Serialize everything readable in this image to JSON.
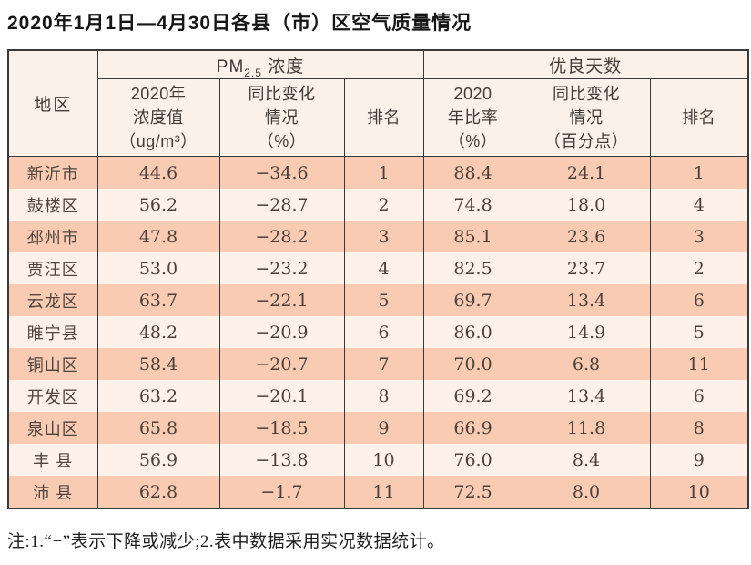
{
  "title": "2020年1月1日—4月30日各县（市）区空气质量情况",
  "table": {
    "header": {
      "region": "地区",
      "pm_prefix": "PM",
      "pm_sub": "2.5",
      "pm_suffix": " 浓度",
      "good_group": "优良天数",
      "col_pm_value": "2020年\n浓度值\n（ug/m³）",
      "col_pm_change": "同比变化\n情况\n（%）",
      "col_pm_rank": "排名",
      "col_gd_rate": "2020\n年比率\n（%）",
      "col_gd_change": "同比变化\n情况\n（百分点）",
      "col_gd_rank": "排名"
    },
    "rows": [
      {
        "region": "新沂市",
        "pm_value": "44.6",
        "pm_change": "−34.6",
        "pm_rank": "1",
        "gd_rate": "88.4",
        "gd_change": "24.1",
        "gd_rank": "1"
      },
      {
        "region": "鼓楼区",
        "pm_value": "56.2",
        "pm_change": "−28.7",
        "pm_rank": "2",
        "gd_rate": "74.8",
        "gd_change": "18.0",
        "gd_rank": "4"
      },
      {
        "region": "邳州市",
        "pm_value": "47.8",
        "pm_change": "−28.2",
        "pm_rank": "3",
        "gd_rate": "85.1",
        "gd_change": "23.6",
        "gd_rank": "3"
      },
      {
        "region": "贾汪区",
        "pm_value": "53.0",
        "pm_change": "−23.2",
        "pm_rank": "4",
        "gd_rate": "82.5",
        "gd_change": "23.7",
        "gd_rank": "2"
      },
      {
        "region": "云龙区",
        "pm_value": "63.7",
        "pm_change": "−22.1",
        "pm_rank": "5",
        "gd_rate": "69.7",
        "gd_change": "13.4",
        "gd_rank": "6"
      },
      {
        "region": "睢宁县",
        "pm_value": "48.2",
        "pm_change": "−20.9",
        "pm_rank": "6",
        "gd_rate": "86.0",
        "gd_change": "14.9",
        "gd_rank": "5"
      },
      {
        "region": "铜山区",
        "pm_value": "58.4",
        "pm_change": "−20.7",
        "pm_rank": "7",
        "gd_rate": "70.0",
        "gd_change": "6.8",
        "gd_rank": "11"
      },
      {
        "region": "开发区",
        "pm_value": "63.2",
        "pm_change": "−20.1",
        "pm_rank": "8",
        "gd_rate": "69.2",
        "gd_change": "13.4",
        "gd_rank": "6"
      },
      {
        "region": "泉山区",
        "pm_value": "65.8",
        "pm_change": "−18.5",
        "pm_rank": "9",
        "gd_rate": "66.9",
        "gd_change": "11.8",
        "gd_rank": "8"
      },
      {
        "region": "丰 县",
        "pm_value": "56.9",
        "pm_change": "−13.8",
        "pm_rank": "10",
        "gd_rate": "76.0",
        "gd_change": "8.4",
        "gd_rank": "9"
      },
      {
        "region": "沛 县",
        "pm_value": "62.8",
        "pm_change": "−1.7",
        "pm_rank": "11",
        "gd_rate": "72.5",
        "gd_change": "8.0",
        "gd_rank": "10"
      }
    ]
  },
  "note": "注:1.“−”表示下降或减少;2.表中数据采用实况数据统计。",
  "colors": {
    "row_odd_bg": "#f9cbb3",
    "row_even_bg": "#fdf1e9",
    "header_bg": "#fbf1e8",
    "border": "#3a3a3a",
    "text": "#4c413a"
  }
}
